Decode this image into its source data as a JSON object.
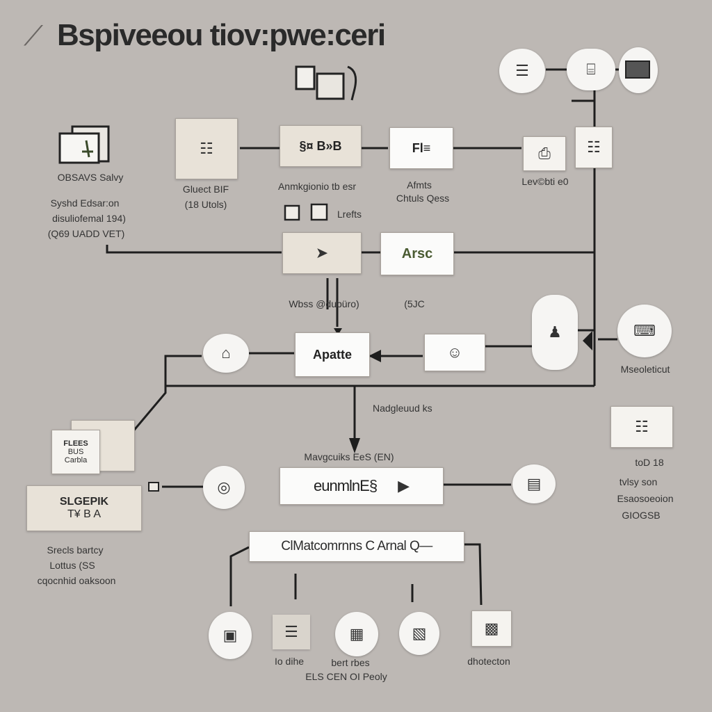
{
  "title": "Bspiveeou tiov:pwe:ceri",
  "icons": {
    "folder": "folder-icon",
    "document": "document-icon",
    "monitor": "monitor-icon",
    "person": "person-icon",
    "arrow": "arrow-icon",
    "server": "server-icon",
    "camera": "camera-icon",
    "printer": "printer-icon"
  },
  "nodes": {
    "top_left_folder_caption": "OBSAVS Salvy",
    "left_caption": [
      "Syshd Edsar:on",
      "disuliofemal 194)",
      "(Q69 UADD VET)"
    ],
    "doc_stack_caption": [
      "Gluect BIF",
      "(18 Utols)"
    ],
    "box_top_center_text": "§¤ B»B",
    "box_top_center_caption": "Anmkgionio tb esr",
    "small_icons_caption": "Lrefts",
    "box_top_right_text": "Fl≡",
    "box_top_right_caption": [
      "Afmts",
      "Chtuls Qess"
    ],
    "printer_caption": "Lev©bti e0",
    "box_mid_right_text": "Arsc",
    "mid_left_caption": "Wbss @dubüro)",
    "mid_right_caption": "(5JC",
    "center_box_text": "Apatte",
    "right_mid_caption": "Mseoleticut",
    "vertical_caption": "Nadgleuud ks",
    "bottom_box_caption": "Mavgcuiks EeS (EN)",
    "bottom_box_text": "eunmlnE§",
    "left_beige_text": [
      "FLEES",
      "BUS",
      "Carbla"
    ],
    "left_banner_text": [
      "SLGEPIK",
      "T¥ B A"
    ],
    "left_bottom_caption": [
      "Srecls bartcy",
      "Lottus (SS",
      "cqocnhid oaksoon"
    ],
    "right_cluster_caption": [
      "toD 18",
      "tvlsy son",
      "Esaosoeoion",
      "GIOGSB"
    ],
    "wide_bar_text": "ClMatcomrnns C Arnal Q—",
    "bottom_row_captions": {
      "left": "Io dihe",
      "middle": [
        "bert rbes",
        "ELS CEN OI Peoly"
      ],
      "right": "dhotecton"
    }
  }
}
